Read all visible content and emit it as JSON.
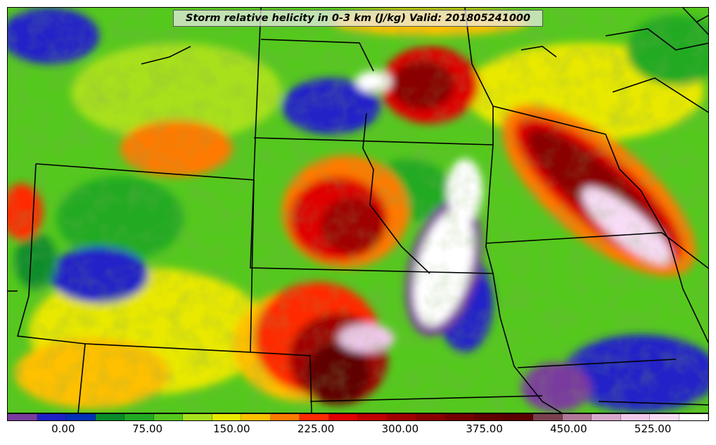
{
  "map": {
    "title": "Storm relative helicity in 0-3 km (J/kg) Valid: 201805241000",
    "colorbar": {
      "colors": [
        "#7a3b9e",
        "#2020c8",
        "#0030b8",
        "#0a8c2a",
        "#22aa22",
        "#55c81e",
        "#a8e01e",
        "#e8e800",
        "#ffc000",
        "#ff7a00",
        "#ff2a00",
        "#e00000",
        "#c00000",
        "#a00000",
        "#8a0000",
        "#740000",
        "#600000",
        "#5a0000",
        "#7a4050",
        "#b07898",
        "#d8a8cc",
        "#f0c8ec",
        "#f8dcf6",
        "#ffffff"
      ],
      "ticks": [
        {
          "label": "0.00",
          "at": 0.08
        },
        {
          "label": "75.00",
          "at": 0.2
        },
        {
          "label": "150.00",
          "at": 0.32
        },
        {
          "label": "225.00",
          "at": 0.44
        },
        {
          "label": "300.00",
          "at": 0.56
        },
        {
          "label": "375.00",
          "at": 0.68
        },
        {
          "label": "450.00",
          "at": 0.8
        },
        {
          "label": "525.00",
          "at": 0.92
        }
      ]
    }
  }
}
